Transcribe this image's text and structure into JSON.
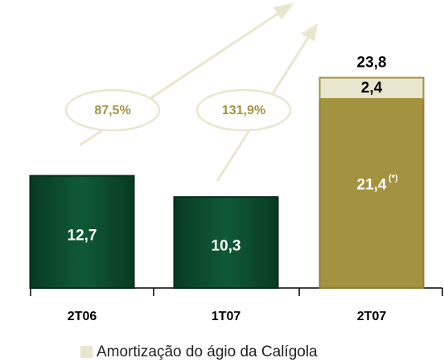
{
  "chart_data": {
    "type": "stacked_bar",
    "categories": [
      "2T06",
      "1T07",
      "2T07"
    ],
    "series": [
      {
        "colors": [
          "#0c4a2c",
          "#0c4a2c",
          "#a39240"
        ],
        "values": [
          12.7,
          10.3,
          21.4
        ],
        "value_labels": [
          "12,7",
          "10,3",
          "21,4"
        ]
      },
      {
        "name": "Amortização do ágio da Calígola",
        "color": "#e9e6cf",
        "values": [
          null,
          null,
          2.4
        ],
        "value_labels": [
          null,
          null,
          "2,4"
        ]
      }
    ],
    "total_values": [
      null,
      null,
      23.8
    ],
    "total_labels": [
      null,
      null,
      "23,8"
    ],
    "footnote_marker": "(*)",
    "growth_labels": [
      "87,5%",
      "131,9%"
    ],
    "ylim": [
      0,
      30.5
    ],
    "legend": "bottom"
  }
}
